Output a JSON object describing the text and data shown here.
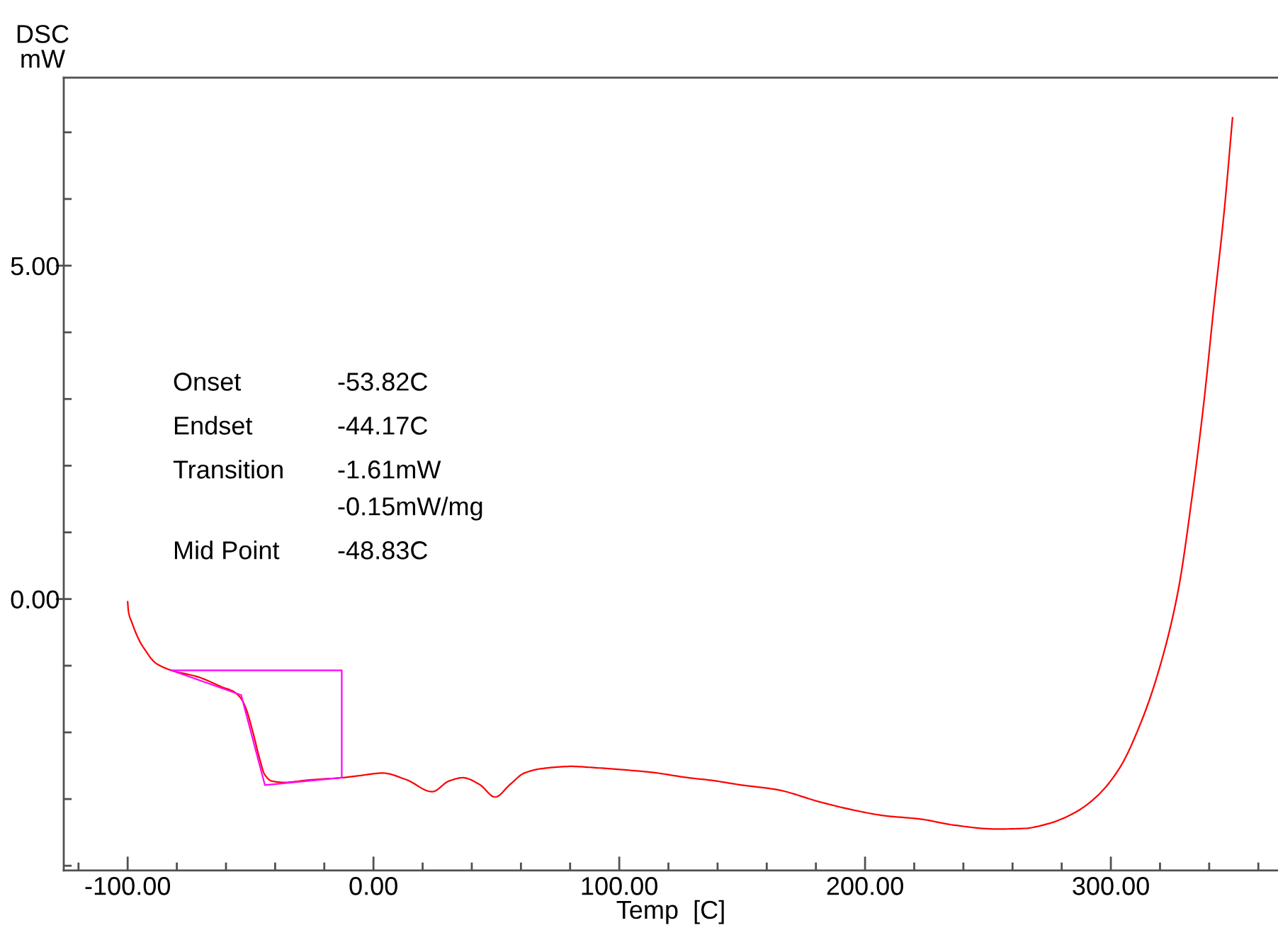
{
  "chart_data": {
    "type": "line",
    "xlabel": "Temp  [C]",
    "ylabel": "DSC\nmW",
    "xlim": [
      -126,
      368
    ],
    "ylim": [
      -4.07,
      7.82
    ],
    "xticks": [
      {
        "value": -120,
        "label": null
      },
      {
        "value": -100,
        "label": "-100.00"
      },
      {
        "value": -80,
        "label": null
      },
      {
        "value": -60,
        "label": null
      },
      {
        "value": -40,
        "label": null
      },
      {
        "value": -20,
        "label": null
      },
      {
        "value": 0,
        "label": "0.00"
      },
      {
        "value": 20,
        "label": null
      },
      {
        "value": 40,
        "label": null
      },
      {
        "value": 60,
        "label": null
      },
      {
        "value": 80,
        "label": null
      },
      {
        "value": 100,
        "label": "100.00"
      },
      {
        "value": 120,
        "label": null
      },
      {
        "value": 140,
        "label": null
      },
      {
        "value": 160,
        "label": null
      },
      {
        "value": 180,
        "label": null
      },
      {
        "value": 200,
        "label": "200.00"
      },
      {
        "value": 220,
        "label": null
      },
      {
        "value": 240,
        "label": null
      },
      {
        "value": 260,
        "label": null
      },
      {
        "value": 280,
        "label": null
      },
      {
        "value": 300,
        "label": "300.00"
      },
      {
        "value": 320,
        "label": null
      },
      {
        "value": 340,
        "label": null
      },
      {
        "value": 360,
        "label": null
      }
    ],
    "yticks": [
      {
        "value": -4,
        "label": null
      },
      {
        "value": -3,
        "label": null
      },
      {
        "value": -2,
        "label": null
      },
      {
        "value": -1,
        "label": null
      },
      {
        "value": 0,
        "label": "0.00"
      },
      {
        "value": 1,
        "label": null
      },
      {
        "value": 2,
        "label": null
      },
      {
        "value": 3,
        "label": null
      },
      {
        "value": 4,
        "label": null
      },
      {
        "value": 5,
        "label": "5.00"
      },
      {
        "value": 6,
        "label": null
      },
      {
        "value": 7,
        "label": null
      }
    ],
    "annotations": [
      "Onset",
      "-53.82C",
      "Endset",
      "-44.17C",
      "Transition",
      "-1.61mW",
      "-0.15mW/mg",
      "Mid Point",
      "-48.83C"
    ],
    "series": [
      {
        "color": "#ff0000",
        "x": [
          -100,
          -99.7,
          -98.2,
          -96.3,
          -94.4,
          -92.4,
          -90.5,
          -88.6,
          -85.7,
          -82.2,
          -71.2,
          -61.6,
          -56.8,
          -53.9,
          -52,
          -49.1,
          -46.2,
          -44.3,
          -41.4,
          -36.6,
          -25.1,
          -12.9,
          -5.9,
          3.7,
          13.4,
          23.9,
          30.7,
          36.4,
          43.1,
          49.5,
          55.6,
          61.4,
          69.1,
          80.6,
          90.2,
          101.3,
          113.4,
          128,
          137.6,
          149.8,
          164.3,
          181.3,
          193.4,
          208,
          222.5,
          236.1,
          253.4,
          264.9,
          274.5,
          285,
          293.7,
          303.3,
          313,
          320.6,
          327.4,
          333.1,
          337.9,
          341.8,
          346.2,
          349.5
        ],
        "values": [
          -0.04,
          -0.18,
          -0.36,
          -0.54,
          -0.68,
          -0.79,
          -0.89,
          -0.96,
          -1.02,
          -1.07,
          -1.17,
          -1.32,
          -1.39,
          -1.49,
          -1.63,
          -1.99,
          -2.41,
          -2.63,
          -2.73,
          -2.75,
          -2.71,
          -2.68,
          -2.65,
          -2.61,
          -2.71,
          -2.89,
          -2.73,
          -2.68,
          -2.78,
          -2.97,
          -2.78,
          -2.61,
          -2.54,
          -2.51,
          -2.53,
          -2.56,
          -2.6,
          -2.68,
          -2.72,
          -2.79,
          -2.86,
          -3.04,
          -3.15,
          -3.25,
          -3.3,
          -3.39,
          -3.45,
          -3.44,
          -3.37,
          -3.21,
          -2.98,
          -2.55,
          -1.78,
          -0.93,
          0.13,
          1.55,
          2.97,
          4.35,
          5.85,
          7.22
        ]
      },
      {
        "color": "#ff00ff",
        "x": [
          -82.2,
          -53.82,
          -44.17,
          -12.9
        ],
        "values": [
          -1.07,
          -1.44,
          -2.79,
          -2.68
        ]
      },
      {
        "type": "step",
        "color": "#ff00ff",
        "x": [
          -82.2,
          -12.9
        ],
        "values": [
          -1.07,
          -2.68
        ]
      }
    ]
  }
}
